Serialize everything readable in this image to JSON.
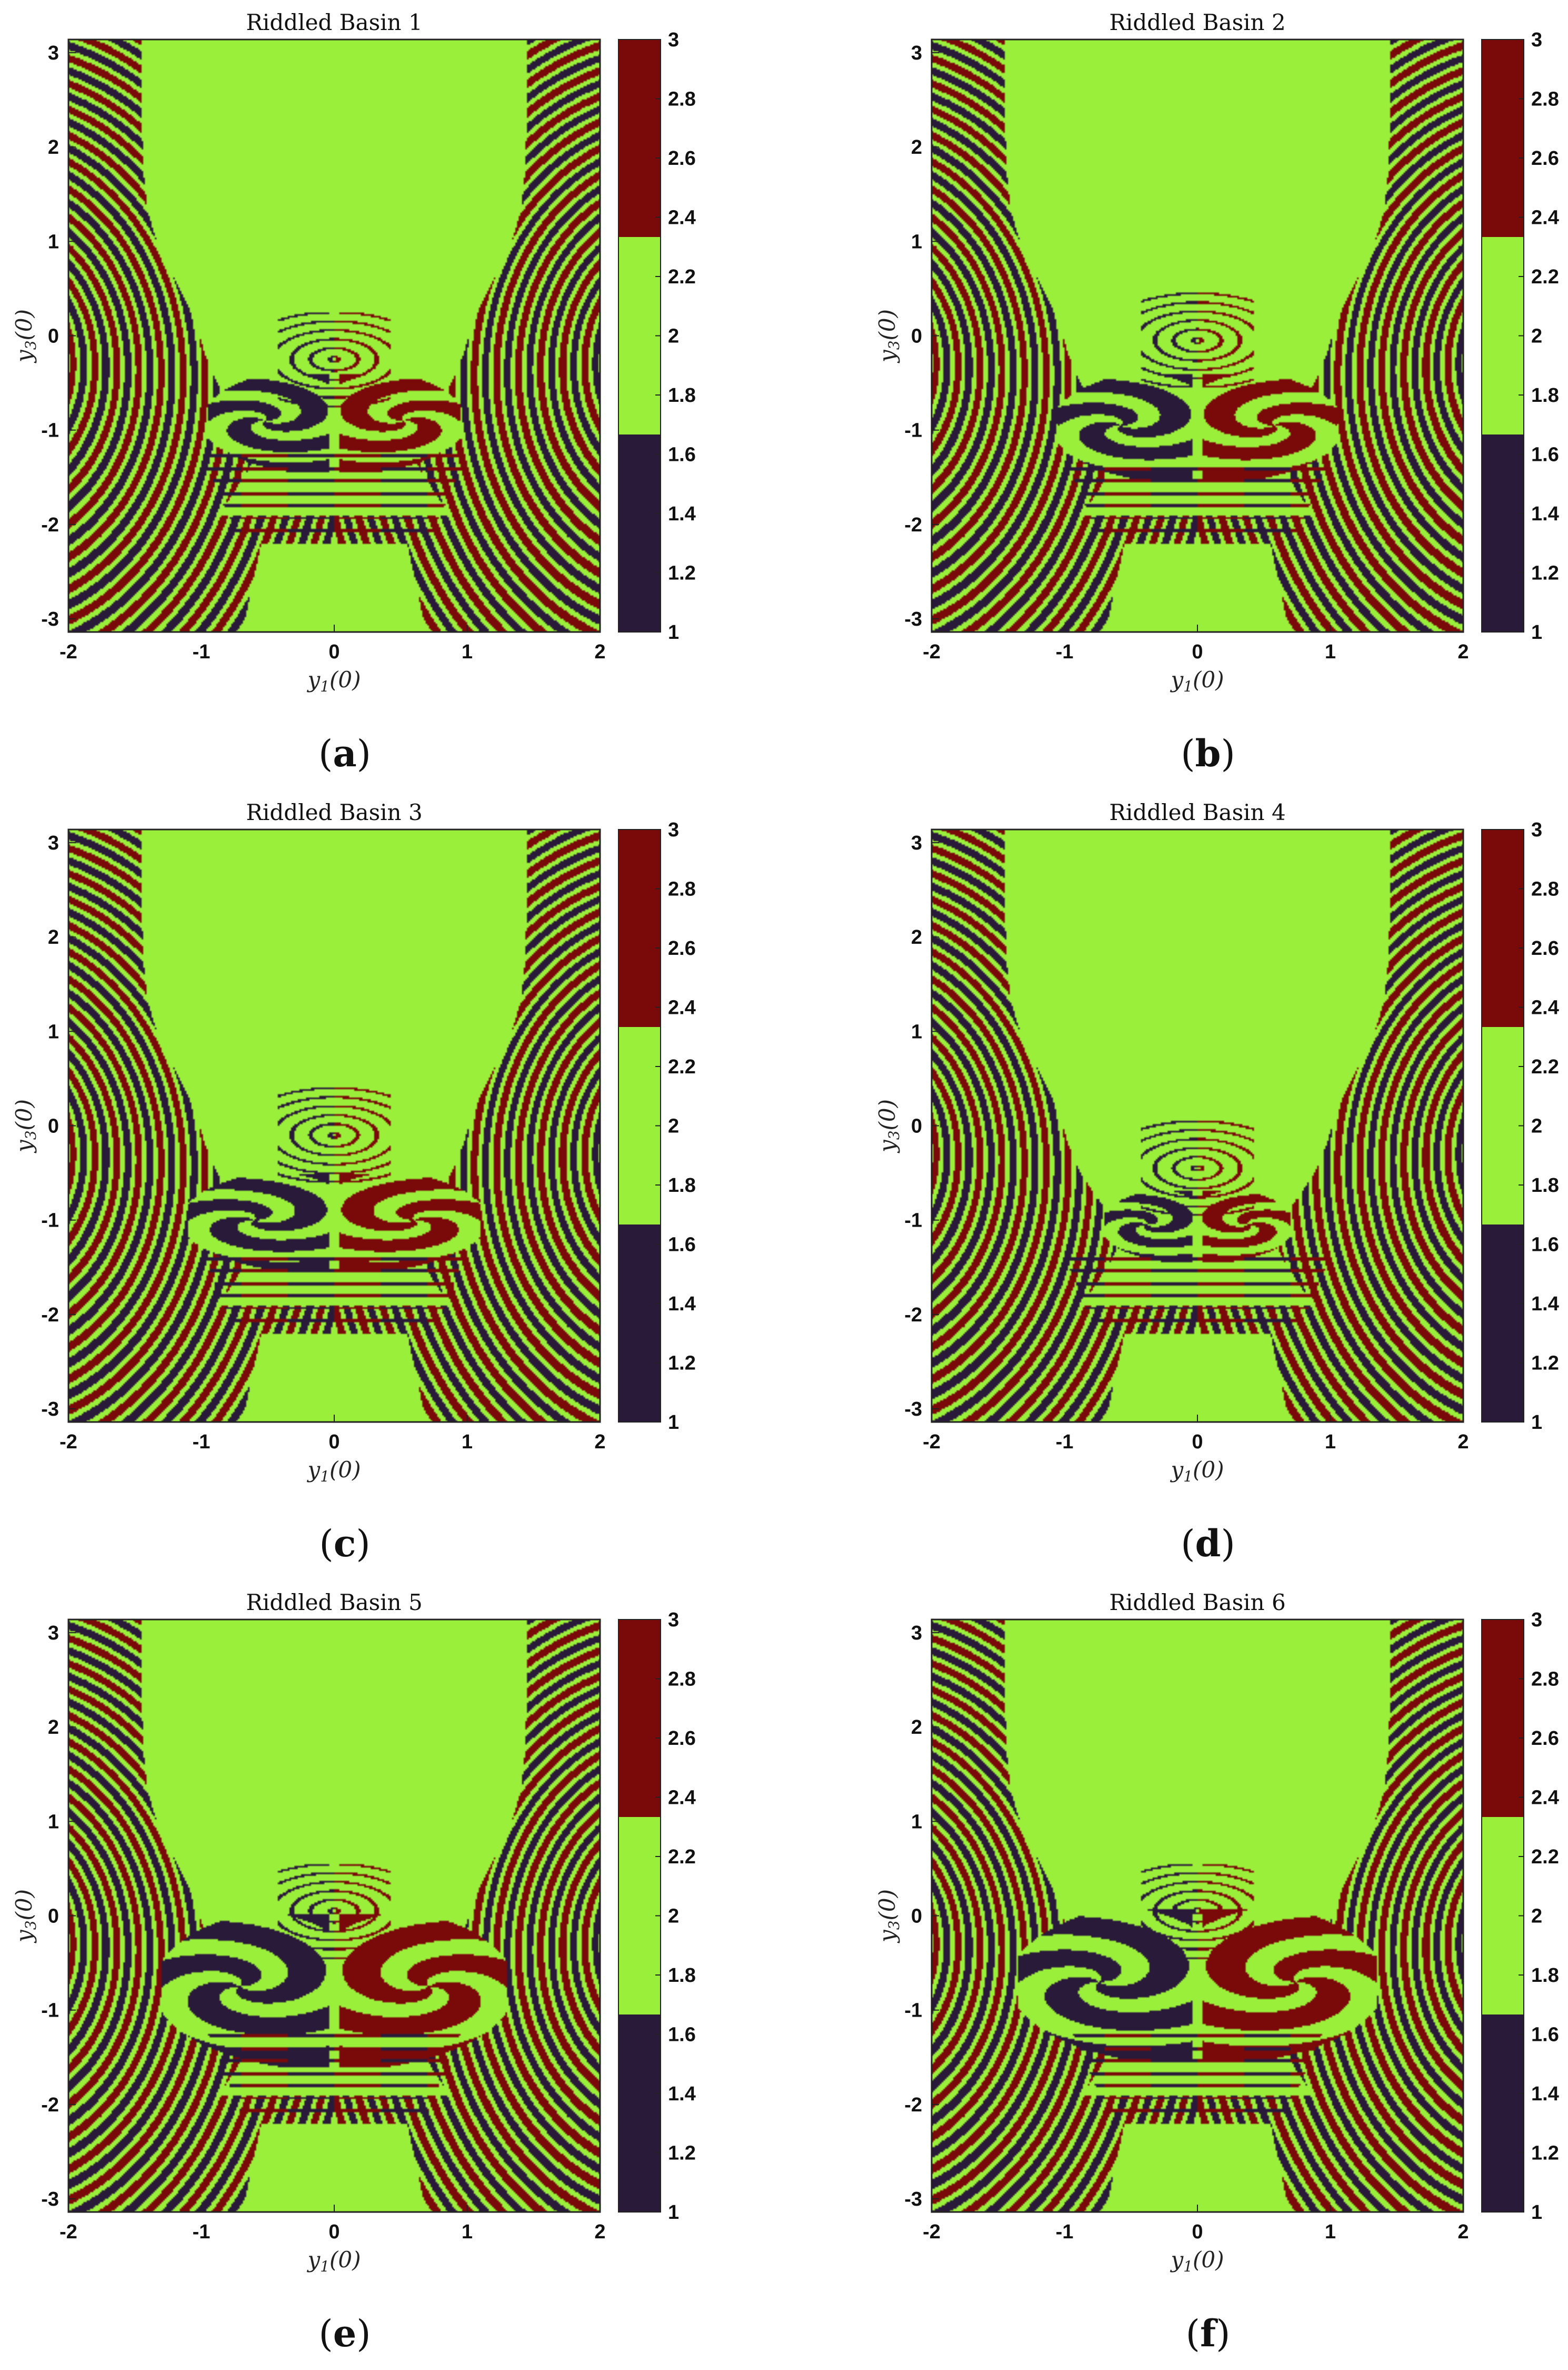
{
  "colors": {
    "basin_1": "#2a1a3a",
    "basin_2": "#9aef3a",
    "basin_3": "#7a0a0a",
    "axes": "#222222",
    "background": "#ffffff"
  },
  "chart_data": [
    {
      "type": "heatmap",
      "panel_letter": "a",
      "title": "Riddled Basin 1",
      "xlabel": "y1(0)",
      "ylabel": "y3(0)",
      "xlim": [
        -2,
        2
      ],
      "ylim": [
        -3.14,
        3.14
      ],
      "x_ticks": [
        "-2",
        "-1",
        "0",
        "1",
        "2"
      ],
      "y_ticks": [
        "3",
        "2",
        "1",
        "0",
        "-1",
        "-2",
        "-3"
      ],
      "colorbar": {
        "range": [
          1,
          3
        ],
        "ticks": [
          "3",
          "2.8",
          "2.6",
          "2.4",
          "2.2",
          "2",
          "1.8",
          "1.6",
          "1.4",
          "1.2",
          "1"
        ],
        "levels": [
          1,
          2,
          3
        ]
      },
      "grid": false,
      "description_params": {
        "lobe_center_y": -0.9,
        "lobe_width": 0.95,
        "lobe_height": 0.55,
        "cap_top": 0.2
      }
    },
    {
      "type": "heatmap",
      "panel_letter": "b",
      "title": "Riddled Basin 2",
      "xlabel": "y1(0)",
      "ylabel": "y3(0)",
      "xlim": [
        -2,
        2
      ],
      "ylim": [
        -3.14,
        3.14
      ],
      "x_ticks": [
        "-2",
        "-1",
        "0",
        "1",
        "2"
      ],
      "y_ticks": [
        "3",
        "2",
        "1",
        "0",
        "-1",
        "-2",
        "-3"
      ],
      "colorbar": {
        "range": [
          1,
          3
        ],
        "ticks": [
          "3",
          "2.8",
          "2.6",
          "2.4",
          "2.2",
          "2",
          "1.8",
          "1.6",
          "1.4",
          "1.2",
          "1"
        ],
        "levels": [
          1,
          2,
          3
        ]
      },
      "grid": false,
      "description_params": {
        "lobe_center_y": -0.95,
        "lobe_width": 1.05,
        "lobe_height": 0.6,
        "cap_top": 0.4
      }
    },
    {
      "type": "heatmap",
      "panel_letter": "c",
      "title": "Riddled Basin 3",
      "xlabel": "y1(0)",
      "ylabel": "y3(0)",
      "xlim": [
        -2,
        2
      ],
      "ylim": [
        -3.14,
        3.14
      ],
      "x_ticks": [
        "-2",
        "-1",
        "0",
        "1",
        "2"
      ],
      "y_ticks": [
        "3",
        "2",
        "1",
        "0",
        "-1",
        "-2",
        "-3"
      ],
      "colorbar": {
        "range": [
          1,
          3
        ],
        "ticks": [
          "3",
          "2.8",
          "2.6",
          "2.4",
          "2.2",
          "2",
          "1.8",
          "1.6",
          "1.4",
          "1.2",
          "1"
        ],
        "levels": [
          1,
          2,
          3
        ]
      },
      "grid": false,
      "description_params": {
        "lobe_center_y": -1.0,
        "lobe_width": 1.1,
        "lobe_height": 0.55,
        "cap_top": 0.35
      }
    },
    {
      "type": "heatmap",
      "panel_letter": "d",
      "title": "Riddled Basin 4",
      "xlabel": "y1(0)",
      "ylabel": "y3(0)",
      "xlim": [
        -2,
        2
      ],
      "ylim": [
        -3.14,
        3.14
      ],
      "x_ticks": [
        "-2",
        "-1",
        "0",
        "1",
        "2"
      ],
      "y_ticks": [
        "3",
        "2",
        "1",
        "0",
        "-1",
        "-2",
        "-3"
      ],
      "colorbar": {
        "range": [
          1,
          3
        ],
        "ticks": [
          "3",
          "2.8",
          "2.6",
          "2.4",
          "2.2",
          "2",
          "1.8",
          "1.6",
          "1.4",
          "1.2",
          "1"
        ],
        "levels": [
          1,
          2,
          3
        ]
      },
      "grid": false,
      "description_params": {
        "lobe_center_y": -1.05,
        "lobe_width": 0.7,
        "lobe_height": 0.4,
        "cap_top": 0.0
      }
    },
    {
      "type": "heatmap",
      "panel_letter": "e",
      "title": "Riddled Basin 5",
      "xlabel": "y1(0)",
      "ylabel": "y3(0)",
      "xlim": [
        -2,
        2
      ],
      "ylim": [
        -3.14,
        3.14
      ],
      "x_ticks": [
        "-2",
        "-1",
        "0",
        "1",
        "2"
      ],
      "y_ticks": [
        "3",
        "2",
        "1",
        "0",
        "-1",
        "-2",
        "-3"
      ],
      "colorbar": {
        "range": [
          1,
          3
        ],
        "ticks": [
          "3",
          "2.8",
          "2.6",
          "2.4",
          "2.2",
          "2",
          "1.8",
          "1.6",
          "1.4",
          "1.2",
          "1"
        ],
        "levels": [
          1,
          2,
          3
        ]
      },
      "grid": false,
      "description_params": {
        "lobe_center_y": -0.75,
        "lobe_width": 1.3,
        "lobe_height": 0.85,
        "cap_top": 0.5
      }
    },
    {
      "type": "heatmap",
      "panel_letter": "f",
      "title": "Riddled Basin 6",
      "xlabel": "y1(0)",
      "ylabel": "y3(0)",
      "xlim": [
        -2,
        2
      ],
      "ylim": [
        -3.14,
        3.14
      ],
      "x_ticks": [
        "-2",
        "-1",
        "0",
        "1",
        "2"
      ],
      "y_ticks": [
        "3",
        "2",
        "1",
        "0",
        "-1",
        "-2",
        "-3"
      ],
      "colorbar": {
        "range": [
          1,
          3
        ],
        "ticks": [
          "3",
          "2.8",
          "2.6",
          "2.4",
          "2.2",
          "2",
          "1.8",
          "1.6",
          "1.4",
          "1.2",
          "1"
        ],
        "levels": [
          1,
          2,
          3
        ]
      },
      "grid": false,
      "description_params": {
        "lobe_center_y": -0.7,
        "lobe_width": 1.35,
        "lobe_height": 0.85,
        "cap_top": 0.5
      }
    }
  ]
}
